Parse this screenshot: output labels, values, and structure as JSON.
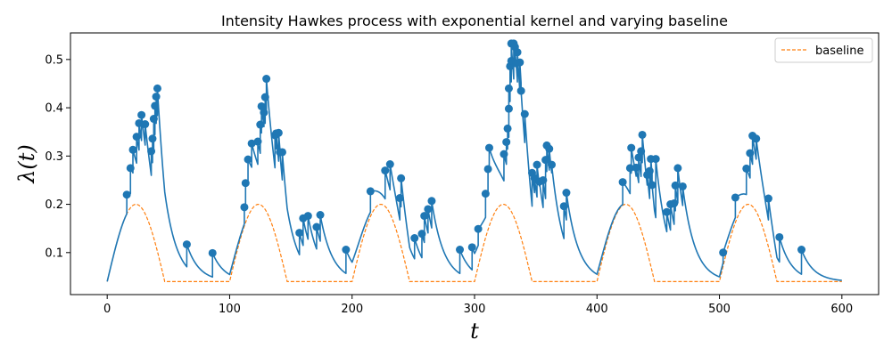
{
  "chart_data": {
    "type": "line",
    "title": "Intensity Hawkes process with exponential kernel and varying baseline",
    "xlabel": "t",
    "ylabel": "λ(t)",
    "xlim": [
      -30,
      630
    ],
    "ylim": [
      0.013,
      0.555
    ],
    "xticks": [
      0,
      100,
      200,
      300,
      400,
      500,
      600
    ],
    "yticks": [
      0.1,
      0.2,
      0.3,
      0.4,
      0.5
    ],
    "xtick_labels": [
      "0",
      "100",
      "200",
      "300",
      "400",
      "500",
      "600"
    ],
    "ytick_labels": [
      "0.1",
      "0.2",
      "0.3",
      "0.4",
      "0.5"
    ],
    "grid": false,
    "legend": {
      "position": "top-right",
      "entries": [
        "baseline"
      ]
    },
    "colors": {
      "intensity": "#1f77b4",
      "baseline": "#ff7f0e"
    },
    "baseline_params": {
      "min": 0.04,
      "max": 0.2,
      "period": 100,
      "active_width": 47
    },
    "decay_rate": 0.1,
    "series": [
      {
        "name": "baseline",
        "style": "dashed",
        "color": "#ff7f0e"
      }
    ],
    "events": [
      {
        "t": 16,
        "y": 0.22
      },
      {
        "t": 19,
        "y": 0.275
      },
      {
        "t": 21,
        "y": 0.313
      },
      {
        "t": 24,
        "y": 0.34
      },
      {
        "t": 26,
        "y": 0.368
      },
      {
        "t": 28,
        "y": 0.385
      },
      {
        "t": 31,
        "y": 0.366
      },
      {
        "t": 36,
        "y": 0.31
      },
      {
        "t": 37,
        "y": 0.336
      },
      {
        "t": 38,
        "y": 0.377
      },
      {
        "t": 39,
        "y": 0.404
      },
      {
        "t": 40,
        "y": 0.423
      },
      {
        "t": 41,
        "y": 0.44
      },
      {
        "t": 65,
        "y": 0.117
      },
      {
        "t": 86,
        "y": 0.099
      },
      {
        "t": 112,
        "y": 0.194
      },
      {
        "t": 113,
        "y": 0.244
      },
      {
        "t": 115,
        "y": 0.293
      },
      {
        "t": 118,
        "y": 0.326
      },
      {
        "t": 123,
        "y": 0.33
      },
      {
        "t": 125,
        "y": 0.365
      },
      {
        "t": 126,
        "y": 0.403
      },
      {
        "t": 128,
        "y": 0.39
      },
      {
        "t": 129,
        "y": 0.422
      },
      {
        "t": 130,
        "y": 0.46
      },
      {
        "t": 137,
        "y": 0.343
      },
      {
        "t": 138,
        "y": 0.347
      },
      {
        "t": 140,
        "y": 0.348
      },
      {
        "t": 141,
        "y": 0.308
      },
      {
        "t": 143,
        "y": 0.308
      },
      {
        "t": 157,
        "y": 0.141
      },
      {
        "t": 160,
        "y": 0.171
      },
      {
        "t": 164,
        "y": 0.176
      },
      {
        "t": 171,
        "y": 0.153
      },
      {
        "t": 174,
        "y": 0.178
      },
      {
        "t": 195,
        "y": 0.106
      },
      {
        "t": 215,
        "y": 0.227
      },
      {
        "t": 227,
        "y": 0.27
      },
      {
        "t": 231,
        "y": 0.283
      },
      {
        "t": 239,
        "y": 0.213
      },
      {
        "t": 240,
        "y": 0.254
      },
      {
        "t": 251,
        "y": 0.13
      },
      {
        "t": 257,
        "y": 0.139
      },
      {
        "t": 259,
        "y": 0.176
      },
      {
        "t": 262,
        "y": 0.19
      },
      {
        "t": 265,
        "y": 0.207
      },
      {
        "t": 288,
        "y": 0.106
      },
      {
        "t": 298,
        "y": 0.111
      },
      {
        "t": 303,
        "y": 0.149
      },
      {
        "t": 309,
        "y": 0.222
      },
      {
        "t": 311,
        "y": 0.273
      },
      {
        "t": 312,
        "y": 0.317
      },
      {
        "t": 324,
        "y": 0.304
      },
      {
        "t": 326,
        "y": 0.329
      },
      {
        "t": 327,
        "y": 0.357
      },
      {
        "t": 328,
        "y": 0.398
      },
      {
        "t": 328,
        "y": 0.44
      },
      {
        "t": 329,
        "y": 0.486
      },
      {
        "t": 330,
        "y": 0.497
      },
      {
        "t": 330,
        "y": 0.533
      },
      {
        "t": 332,
        "y": 0.533
      },
      {
        "t": 333,
        "y": 0.526
      },
      {
        "t": 334,
        "y": 0.492
      },
      {
        "t": 335,
        "y": 0.515
      },
      {
        "t": 337,
        "y": 0.494
      },
      {
        "t": 338,
        "y": 0.435
      },
      {
        "t": 341,
        "y": 0.387
      },
      {
        "t": 347,
        "y": 0.265
      },
      {
        "t": 349,
        "y": 0.254
      },
      {
        "t": 351,
        "y": 0.282
      },
      {
        "t": 353,
        "y": 0.247
      },
      {
        "t": 356,
        "y": 0.25
      },
      {
        "t": 358,
        "y": 0.292
      },
      {
        "t": 359,
        "y": 0.322
      },
      {
        "t": 361,
        "y": 0.315
      },
      {
        "t": 363,
        "y": 0.282
      },
      {
        "t": 373,
        "y": 0.196
      },
      {
        "t": 375,
        "y": 0.224
      },
      {
        "t": 421,
        "y": 0.246
      },
      {
        "t": 427,
        "y": 0.275
      },
      {
        "t": 428,
        "y": 0.317
      },
      {
        "t": 432,
        "y": 0.276
      },
      {
        "t": 434,
        "y": 0.297
      },
      {
        "t": 436,
        "y": 0.31
      },
      {
        "t": 437,
        "y": 0.344
      },
      {
        "t": 441,
        "y": 0.261
      },
      {
        "t": 443,
        "y": 0.269
      },
      {
        "t": 444,
        "y": 0.294
      },
      {
        "t": 445,
        "y": 0.24
      },
      {
        "t": 448,
        "y": 0.294
      },
      {
        "t": 457,
        "y": 0.184
      },
      {
        "t": 460,
        "y": 0.2
      },
      {
        "t": 463,
        "y": 0.202
      },
      {
        "t": 464,
        "y": 0.239
      },
      {
        "t": 466,
        "y": 0.275
      },
      {
        "t": 470,
        "y": 0.237
      },
      {
        "t": 503,
        "y": 0.1
      },
      {
        "t": 513,
        "y": 0.214
      },
      {
        "t": 522,
        "y": 0.274
      },
      {
        "t": 525,
        "y": 0.306
      },
      {
        "t": 527,
        "y": 0.342
      },
      {
        "t": 530,
        "y": 0.336
      },
      {
        "t": 540,
        "y": 0.212
      },
      {
        "t": 549,
        "y": 0.132
      },
      {
        "t": 567,
        "y": 0.106
      }
    ]
  }
}
